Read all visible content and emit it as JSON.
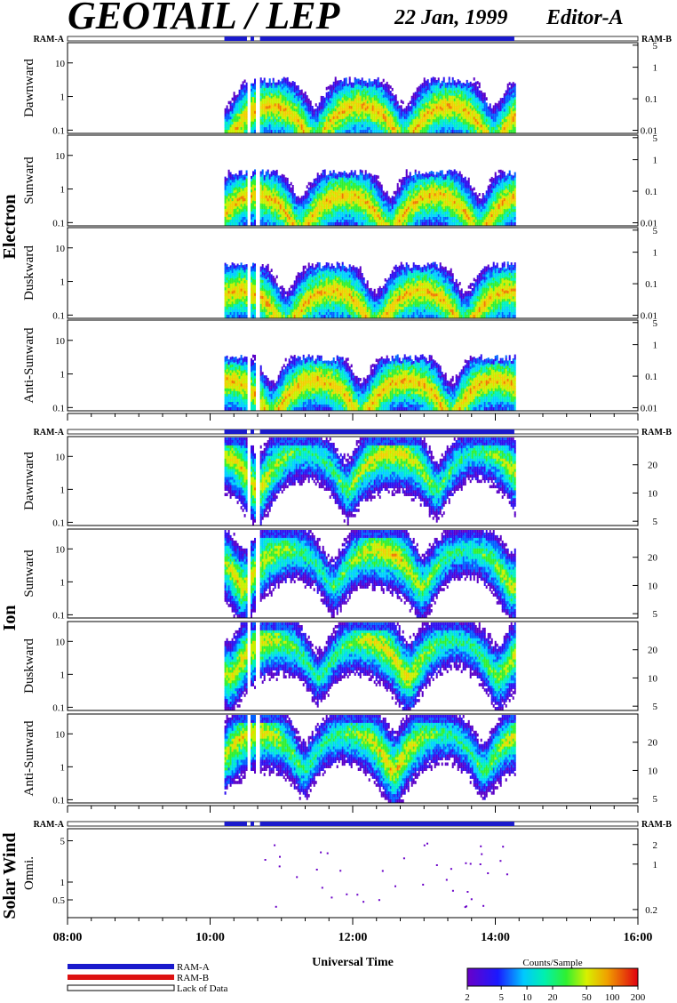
{
  "header": {
    "title": "GEOTAIL / LEP",
    "date": "22 Jan, 1999",
    "editor": "Editor-A"
  },
  "mode_bar": {
    "left_label": "RAM-A",
    "right_label": "RAM-B"
  },
  "groups": {
    "electron": "Electron",
    "ion": "Ion",
    "solar_wind": "Solar Wind"
  },
  "panel_labels": {
    "electron": [
      "Dawnward",
      "Sunward",
      "Duskward",
      "Anti-Sunward"
    ],
    "ion": [
      "Dawnward",
      "Sunward",
      "Duskward",
      "Anti-Sunward"
    ],
    "solar_wind": [
      "Omni."
    ]
  },
  "axis": {
    "x_ticks": [
      "08:00",
      "10:00",
      "12:00",
      "14:00",
      "16:00"
    ],
    "xlabel": "Universal Time",
    "electron_left_ticks": [
      "10",
      "1",
      "0.1"
    ],
    "electron_right_ticks": [
      "5",
      "1",
      "0.1",
      "0.01"
    ],
    "ion_left_ticks": [
      "10",
      "1",
      "0.1"
    ],
    "ion_right_ticks": [
      "20",
      "10",
      "5"
    ],
    "sw_left_ticks": [
      "5",
      "1",
      "0.5"
    ],
    "sw_right_ticks": [
      "2",
      "1",
      "0.2"
    ]
  },
  "legend": {
    "ram_a": "RAM-A",
    "ram_b": "RAM-B",
    "lack": "Lack of Data",
    "colorbar_title": "Counts/Sample",
    "colorbar_ticks": [
      "2",
      "5",
      "10",
      "20",
      "50",
      "100",
      "200"
    ],
    "colors": {
      "ram_a": "#1a1acc",
      "ram_b": "#dd1111"
    }
  },
  "chart_data": {
    "type": "heatmap",
    "x_range": [
      "08:00",
      "16:00"
    ],
    "data_coverage": [
      [
        "10:12",
        "10:31"
      ],
      [
        "10:34",
        "10:37"
      ],
      [
        "10:42",
        "14:16"
      ]
    ],
    "mode": "RAM-A",
    "colorbar_range": [
      2,
      200
    ],
    "colorbar_scale": "log",
    "colormap": [
      "#5a00c8",
      "#2d0ff0",
      "#0060ff",
      "#00d0ff",
      "#00f0c0",
      "#30f030",
      "#c8f000",
      "#f0d000",
      "#f07800",
      "#e01414"
    ],
    "panels": [
      {
        "group": "Electron",
        "name": "Dawnward",
        "ylim": [
          0.08,
          40
        ],
        "yscale": "log",
        "right_ylim": [
          0.008,
          6
        ],
        "band_center": 0.4,
        "band_top": 3
      },
      {
        "group": "Electron",
        "name": "Sunward",
        "ylim": [
          0.08,
          40
        ],
        "yscale": "log",
        "right_ylim": [
          0.008,
          6
        ],
        "band_center": 0.5,
        "band_top": 3
      },
      {
        "group": "Electron",
        "name": "Duskward",
        "ylim": [
          0.08,
          40
        ],
        "yscale": "log",
        "right_ylim": [
          0.008,
          6
        ],
        "band_center": 0.4,
        "band_top": 3
      },
      {
        "group": "Electron",
        "name": "Anti-Sunward",
        "ylim": [
          0.08,
          40
        ],
        "yscale": "log",
        "right_ylim": [
          0.008,
          6
        ],
        "band_center": 0.5,
        "band_top": 3
      },
      {
        "group": "Ion",
        "name": "Dawnward",
        "ylim": [
          0.08,
          40
        ],
        "yscale": "log",
        "right_ylim": [
          4.5,
          40
        ],
        "band_center": 10,
        "band_top": 40
      },
      {
        "group": "Ion",
        "name": "Sunward",
        "ylim": [
          0.08,
          40
        ],
        "yscale": "log",
        "right_ylim": [
          4.5,
          40
        ],
        "band_center": 7,
        "band_top": 40
      },
      {
        "group": "Ion",
        "name": "Duskward",
        "ylim": [
          0.08,
          40
        ],
        "yscale": "log",
        "right_ylim": [
          4.5,
          40
        ],
        "band_center": 8,
        "band_top": 40
      },
      {
        "group": "Ion",
        "name": "Anti-Sunward",
        "ylim": [
          0.08,
          40
        ],
        "yscale": "log",
        "right_ylim": [
          4.5,
          40
        ],
        "band_center": 8,
        "band_top": 40
      },
      {
        "group": "Solar Wind",
        "name": "Omni.",
        "ylim": [
          0.25,
          8
        ],
        "yscale": "log",
        "right_ylim": [
          0.15,
          3.5
        ],
        "sparse": true
      }
    ]
  }
}
